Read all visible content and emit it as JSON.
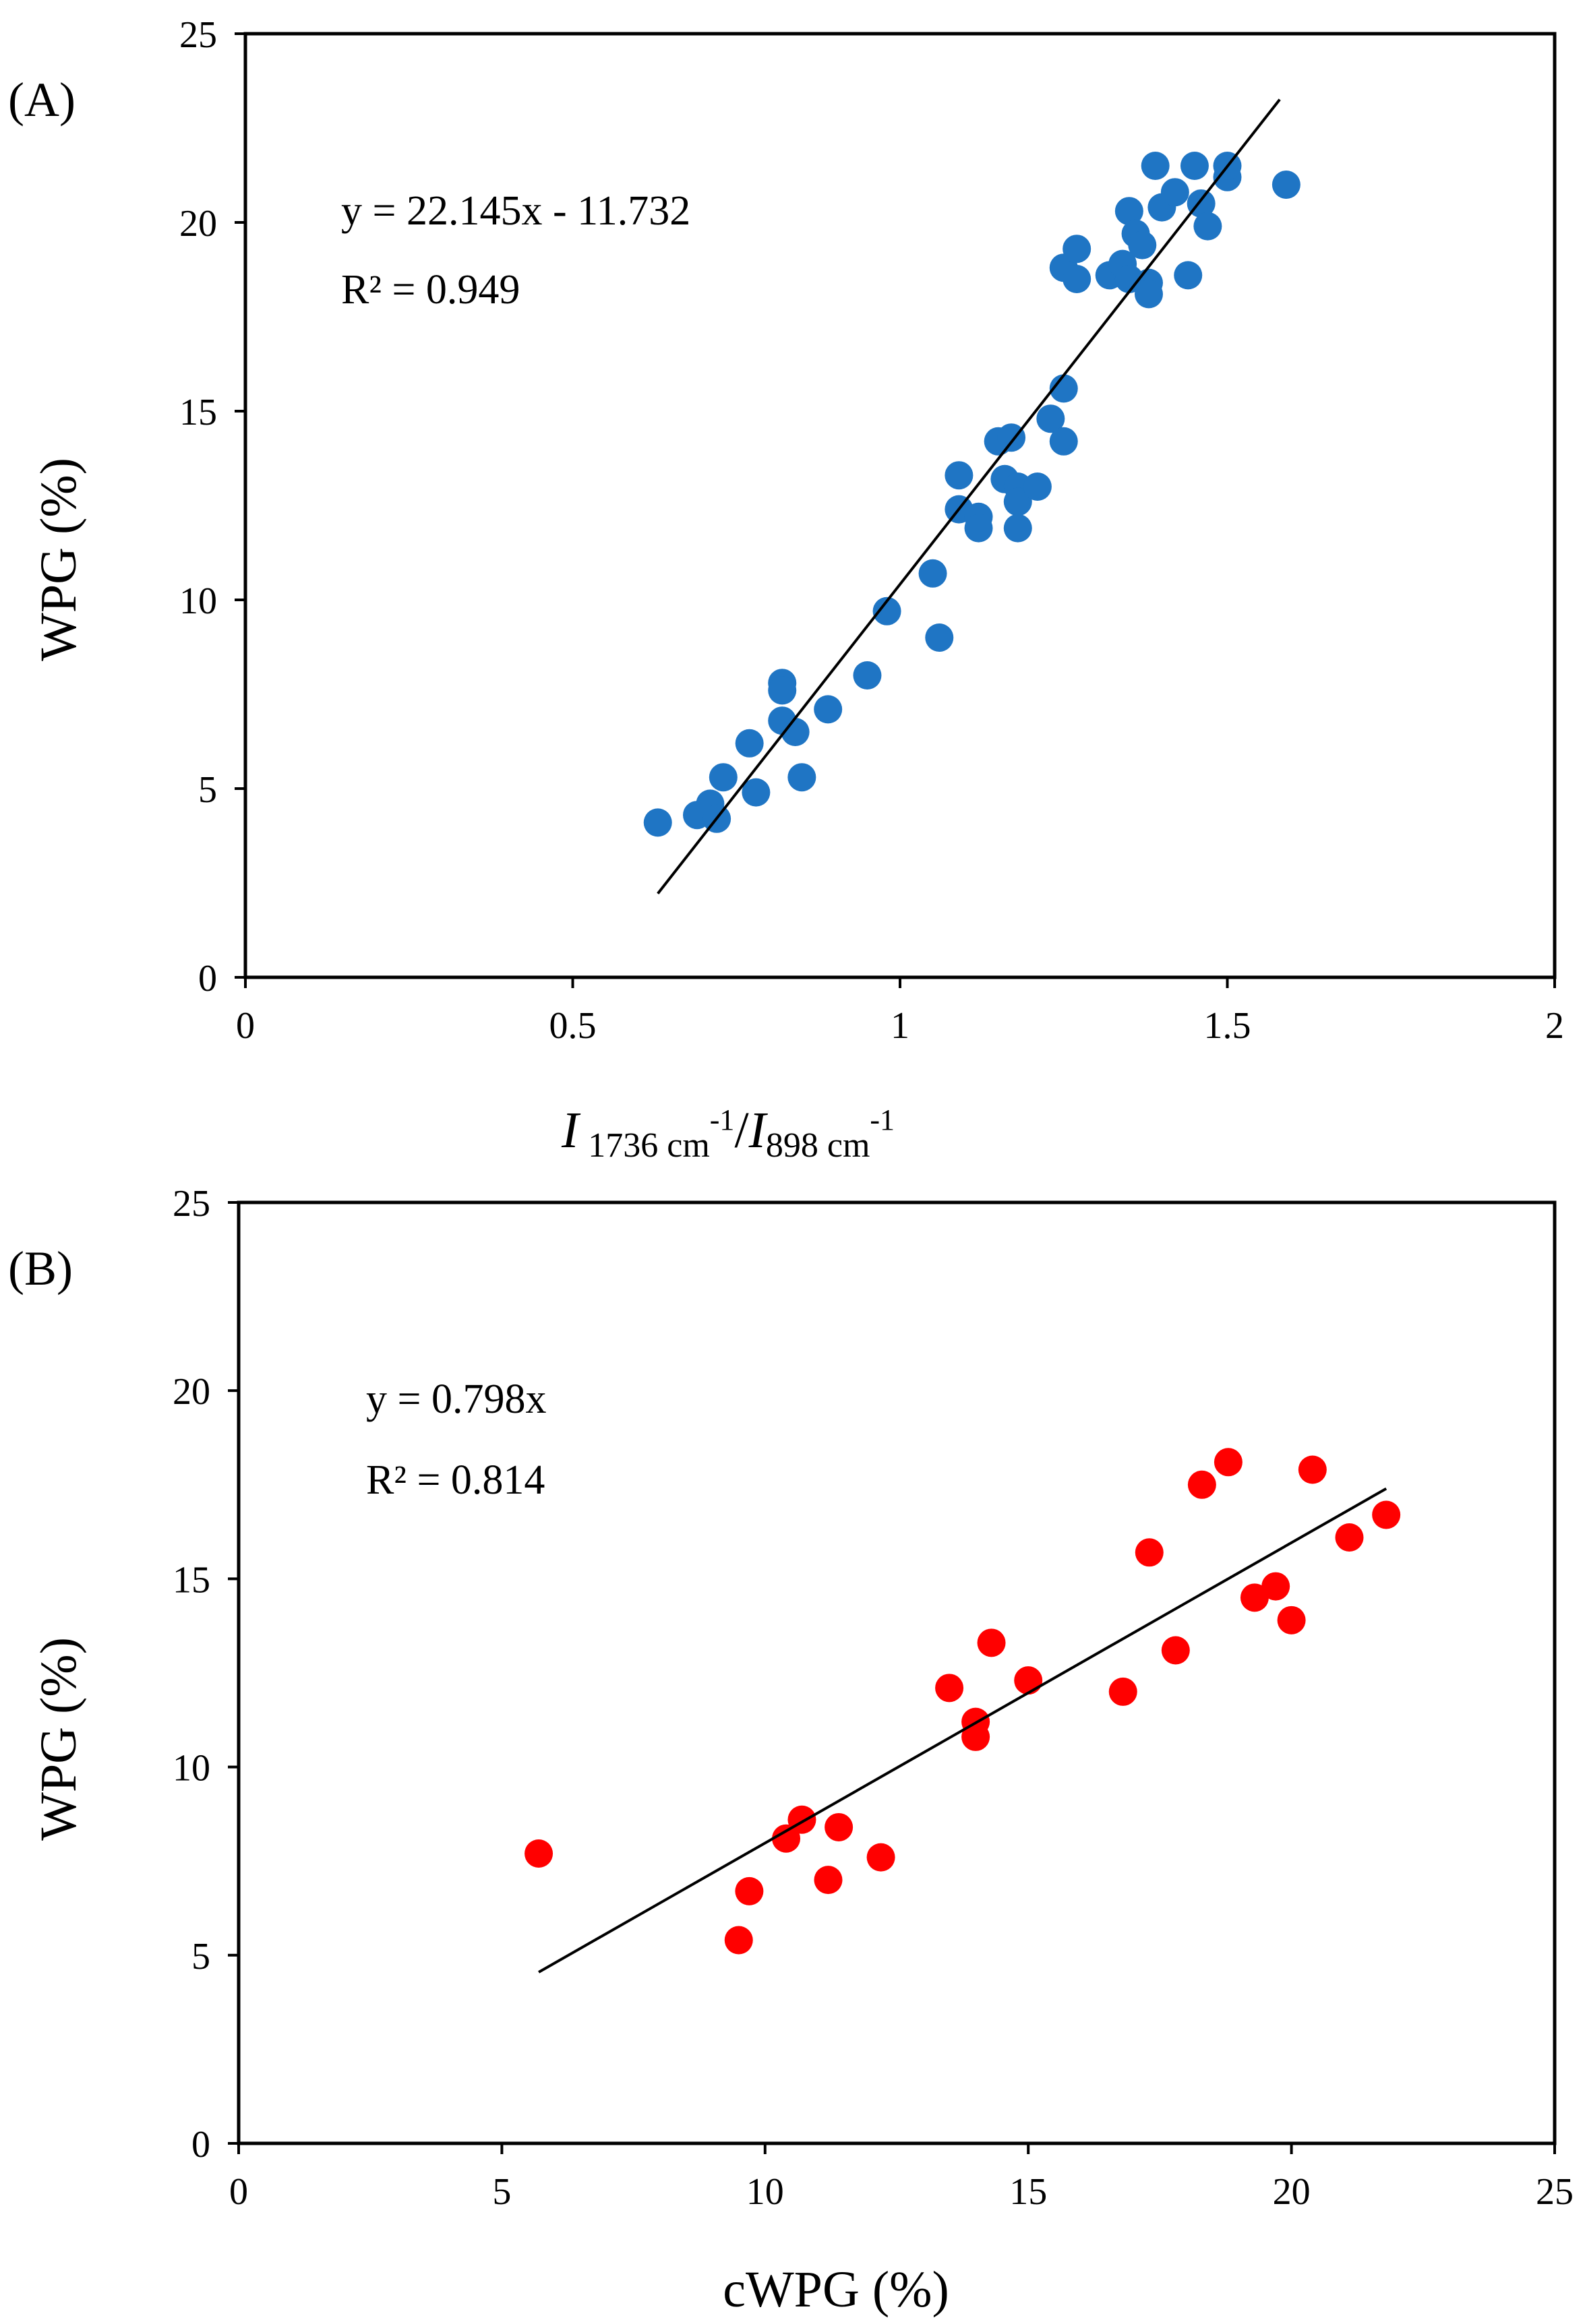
{
  "colors": {
    "panel_a_points": "#1f75c4",
    "panel_b_points": "#ff0000",
    "axes": "#000000",
    "trend": "#000000"
  },
  "chart_data": [
    {
      "type": "scatter",
      "panel_label": "(A)",
      "ylabel": "WPG (%)",
      "xlabel": {
        "i1": "I",
        "sub1": "1736 cm",
        "sup1": "-1",
        "slash": "/",
        "i2": "I",
        "sub2": "898 cm",
        "sup2": "-1"
      },
      "xlim": [
        0,
        2
      ],
      "ylim": [
        0,
        25
      ],
      "xticks": [
        0,
        0.5,
        1,
        1.5,
        2
      ],
      "xtick_labels": [
        "0",
        "0.5",
        "1",
        "1.5",
        "2"
      ],
      "yticks": [
        0,
        5,
        10,
        15,
        20,
        25
      ],
      "ytick_labels": [
        "0",
        "5",
        "10",
        "15",
        "20",
        "25"
      ],
      "equation": "y = 22.145x - 11.732",
      "r2": "R² = 0.949",
      "trendline": {
        "slope": 22.145,
        "intercept": -11.732,
        "x_range": [
          0.63,
          1.58
        ]
      },
      "points": [
        [
          0.63,
          4.1
        ],
        [
          0.69,
          4.3
        ],
        [
          0.71,
          4.6
        ],
        [
          0.72,
          4.2
        ],
        [
          0.73,
          5.3
        ],
        [
          0.77,
          6.2
        ],
        [
          0.78,
          4.9
        ],
        [
          0.82,
          7.8
        ],
        [
          0.82,
          7.6
        ],
        [
          0.82,
          6.8
        ],
        [
          0.84,
          6.5
        ],
        [
          0.85,
          5.3
        ],
        [
          0.89,
          7.1
        ],
        [
          0.95,
          8.0
        ],
        [
          0.98,
          9.7
        ],
        [
          1.05,
          10.7
        ],
        [
          1.06,
          9.0
        ],
        [
          1.09,
          13.3
        ],
        [
          1.09,
          12.4
        ],
        [
          1.12,
          12.2
        ],
        [
          1.12,
          11.9
        ],
        [
          1.15,
          14.2
        ],
        [
          1.16,
          13.2
        ],
        [
          1.17,
          14.3
        ],
        [
          1.18,
          13.0
        ],
        [
          1.18,
          12.6
        ],
        [
          1.18,
          11.9
        ],
        [
          1.21,
          13.0
        ],
        [
          1.23,
          14.8
        ],
        [
          1.25,
          15.6
        ],
        [
          1.25,
          14.2
        ],
        [
          1.25,
          18.8
        ],
        [
          1.27,
          19.3
        ],
        [
          1.27,
          18.5
        ],
        [
          1.32,
          18.6
        ],
        [
          1.34,
          18.9
        ],
        [
          1.35,
          20.3
        ],
        [
          1.35,
          18.5
        ],
        [
          1.36,
          19.7
        ],
        [
          1.37,
          19.4
        ],
        [
          1.38,
          18.4
        ],
        [
          1.38,
          18.1
        ],
        [
          1.39,
          21.5
        ],
        [
          1.4,
          20.4
        ],
        [
          1.42,
          20.8
        ],
        [
          1.44,
          18.6
        ],
        [
          1.45,
          21.5
        ],
        [
          1.46,
          20.5
        ],
        [
          1.47,
          19.9
        ],
        [
          1.5,
          21.2
        ],
        [
          1.5,
          21.5
        ],
        [
          1.59,
          21.0
        ]
      ]
    },
    {
      "type": "scatter",
      "panel_label": "(B)",
      "ylabel": "WPG (%)",
      "xlabel": "cWPG (%)",
      "xlim": [
        0,
        25
      ],
      "ylim": [
        0,
        25
      ],
      "xticks": [
        0,
        5,
        10,
        15,
        20,
        25
      ],
      "xtick_labels": [
        "0",
        "5",
        "10",
        "15",
        "20",
        "25"
      ],
      "yticks": [
        0,
        5,
        10,
        15,
        20,
        25
      ],
      "ytick_labels": [
        "0",
        "5",
        "10",
        "15",
        "20",
        "25"
      ],
      "equation": "y = 0.798x",
      "r2": "R² = 0.814",
      "trendline": {
        "slope": 0.798,
        "intercept": 0,
        "x_range": [
          5.7,
          21.8
        ]
      },
      "points": [
        [
          5.7,
          7.7
        ],
        [
          9.5,
          5.4
        ],
        [
          9.7,
          6.7
        ],
        [
          10.4,
          8.1
        ],
        [
          10.7,
          8.6
        ],
        [
          11.2,
          7.0
        ],
        [
          11.4,
          8.4
        ],
        [
          12.2,
          7.6
        ],
        [
          13.5,
          12.1
        ],
        [
          14.0,
          11.2
        ],
        [
          14.0,
          10.8
        ],
        [
          14.3,
          13.3
        ],
        [
          15.0,
          12.3
        ],
        [
          16.8,
          12.0
        ],
        [
          17.3,
          15.7
        ],
        [
          17.8,
          13.1
        ],
        [
          18.3,
          17.5
        ],
        [
          18.8,
          18.1
        ],
        [
          19.3,
          14.5
        ],
        [
          19.7,
          14.8
        ],
        [
          20.0,
          13.9
        ],
        [
          20.4,
          17.9
        ],
        [
          21.1,
          16.1
        ],
        [
          21.8,
          16.7
        ]
      ]
    }
  ]
}
